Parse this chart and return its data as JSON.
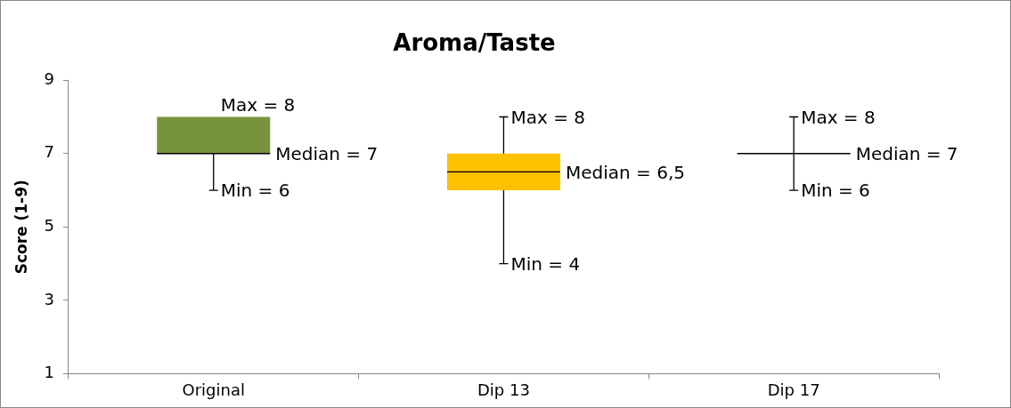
{
  "chart_data": {
    "type": "box",
    "title": "Aroma/Taste",
    "ylabel": "Score (1-9)",
    "categories": [
      "Original",
      "Dip 13",
      "Dip 17"
    ],
    "boxes": [
      {
        "low": 6,
        "q1": 7,
        "median": 7,
        "q3": 8,
        "high": 8
      },
      {
        "low": 4,
        "q1": 6,
        "median": 6.5,
        "q3": 7,
        "high": 8
      },
      {
        "low": 6,
        "q1": 7,
        "median": 7,
        "q3": 7,
        "high": 8
      }
    ],
    "colors": [
      "#77933c",
      "#ffc000",
      "#000000"
    ],
    "ylim": [
      1,
      9
    ],
    "yticks": [
      1,
      3,
      5,
      7,
      9
    ],
    "grid": false,
    "legend": false,
    "annotations": [
      {
        "text": "Max = 8",
        "x": "Original",
        "y": 8
      },
      "Median = 7",
      {
        "text": "Min = 6",
        "x": "Original",
        "y": 6
      },
      {
        "text": "Max = 8",
        "x": "Dip 13",
        "y": 8
      },
      "Median = 6,5",
      {
        "text": "Min = 4",
        "x": "Dip 13",
        "y": 4
      },
      {
        "text": "Max = 8",
        "x": "Dip 17",
        "y": 8
      },
      "Median = 7",
      {
        "text": "Min = 6",
        "x": "Dip 17",
        "y": 6
      }
    ]
  }
}
